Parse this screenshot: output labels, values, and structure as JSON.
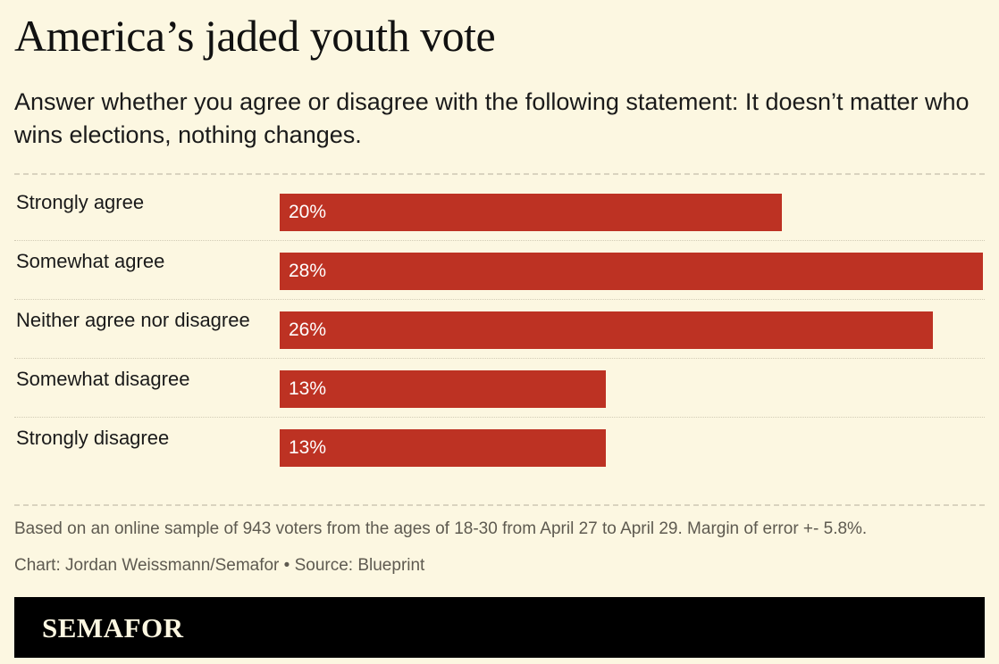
{
  "chart_data": {
    "type": "bar",
    "orientation": "horizontal",
    "title": "America’s jaded youth vote",
    "subtitle": "Answer whether you agree or disagree with the following statement: It doesn’t matter who wins elections, nothing changes.",
    "categories": [
      "Strongly agree",
      "Somewhat agree",
      "Neither agree nor disagree",
      "Somewhat disagree",
      "Strongly disagree"
    ],
    "values": [
      20,
      28,
      26,
      13,
      13
    ],
    "value_labels": [
      "20%",
      "28%",
      "26%",
      "13%",
      "13%"
    ],
    "xlim": [
      0,
      28
    ],
    "bar_color": "#bd3223",
    "grid": false,
    "legend": "none"
  },
  "footer": {
    "note": "Based on an online sample of 943 voters from the ages of 18-30 from April 27 to April 29. Margin of error +- 5.8%.",
    "credit": "Chart: Jordan Weissmann/Semafor • Source: Blueprint"
  },
  "brand": {
    "name": "SEMAFOR",
    "background": "#000000",
    "page_background": "#fcf7e1"
  }
}
